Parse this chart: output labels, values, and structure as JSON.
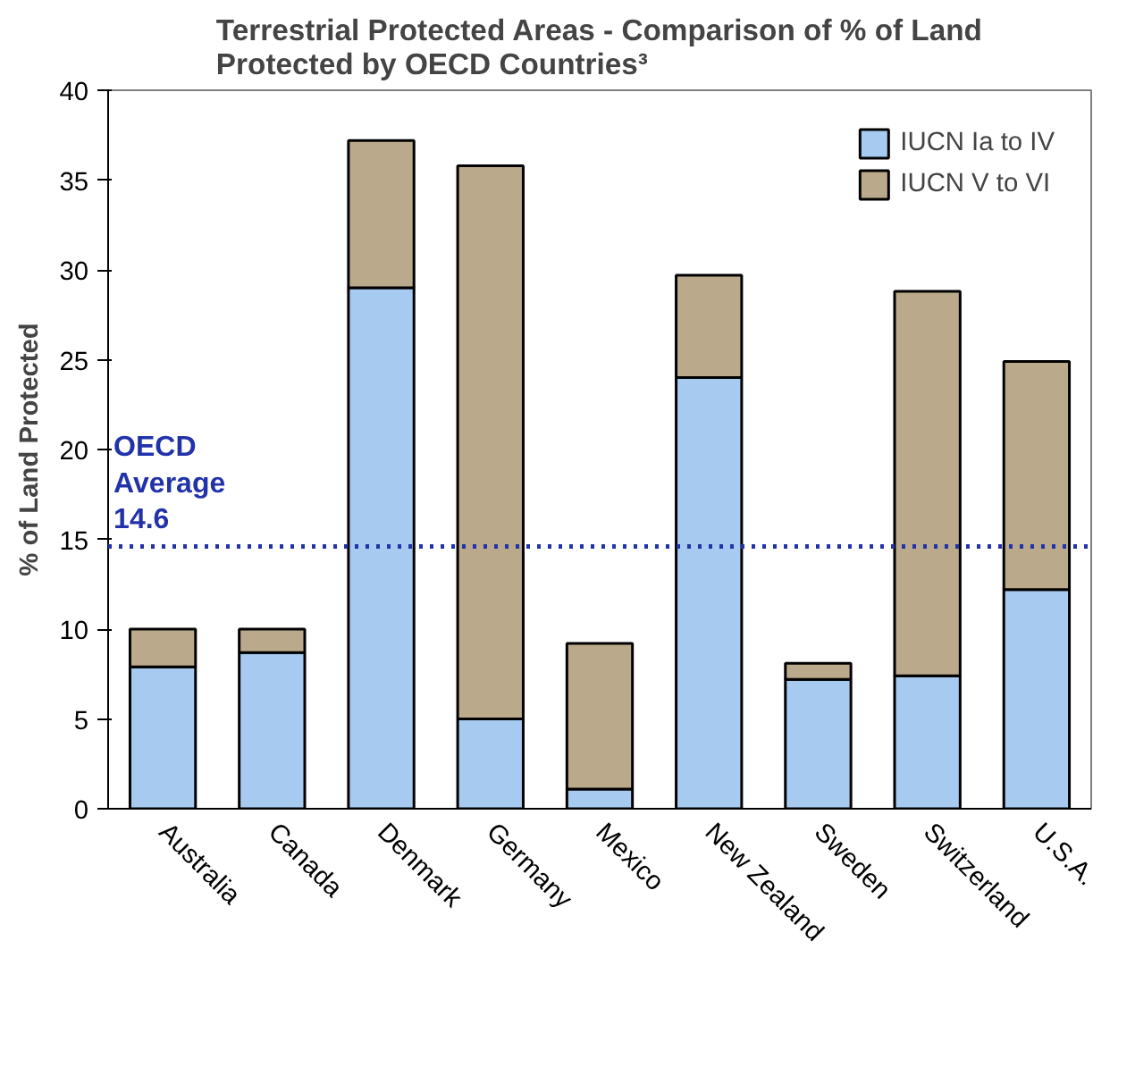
{
  "chart_data": {
    "type": "bar",
    "stacked": true,
    "title": "Terrestrial Protected Areas - Comparison of % of Land Protected by OECD Countries³",
    "ylabel": "% of Land Protected",
    "categories": [
      "Australia",
      "Canada",
      "Denmark",
      "Germany",
      "Mexico",
      "New Zealand",
      "Sweden",
      "Switzerland",
      "U.S.A."
    ],
    "series": [
      {
        "name": "IUCN Ia to IV",
        "color": "#a6caf0",
        "values": [
          7.9,
          8.7,
          29.0,
          5.0,
          1.1,
          24.0,
          7.2,
          7.4,
          12.2
        ]
      },
      {
        "name": "IUCN V to VI",
        "color": "#bba98b",
        "values": [
          2.1,
          1.3,
          8.2,
          30.8,
          8.1,
          5.7,
          0.9,
          21.4,
          12.7
        ]
      }
    ],
    "ylim": [
      0,
      40
    ],
    "yticks": [
      0,
      5,
      10,
      15,
      20,
      25,
      30,
      35,
      40
    ],
    "grid": false,
    "legend": "top right",
    "ref_lines": [
      {
        "axis": "y",
        "value": 14.6,
        "label": "OECD\nAverage\n14.6",
        "color": "#2233aa",
        "line_style": "dotted"
      }
    ]
  }
}
